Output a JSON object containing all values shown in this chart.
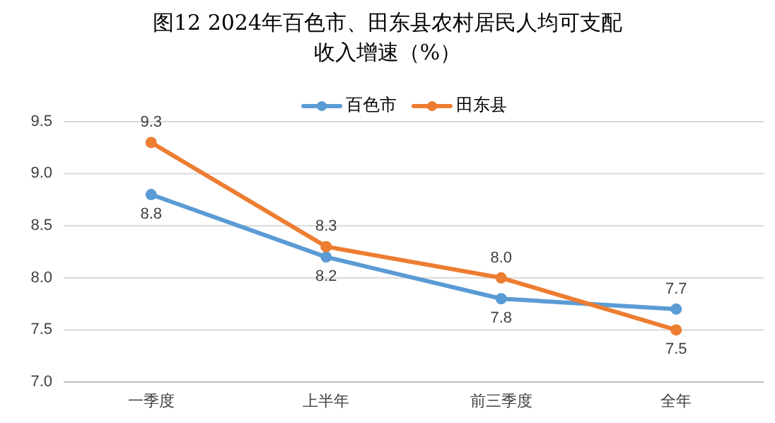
{
  "chart_data": {
    "type": "line",
    "title": "图12  2024年百色市、田东县农村居民人均可支配收入增速（%）",
    "categories": [
      "一季度",
      "上半年",
      "前三季度",
      "全年"
    ],
    "series": [
      {
        "name": "百色市",
        "color": "#5b9bd5",
        "values": [
          8.8,
          8.2,
          7.8,
          7.7
        ],
        "value_labels": [
          "8.8",
          "8.2",
          "7.8",
          "7.7"
        ]
      },
      {
        "name": "田东县",
        "color": "#ed7d31",
        "values": [
          9.3,
          8.3,
          8.0,
          7.5
        ],
        "value_labels": [
          "9.3",
          "8.3",
          "8.0",
          "7.5"
        ]
      }
    ],
    "ylim": [
      7.0,
      9.5
    ],
    "yticks": [
      {
        "value": 7,
        "label": "7.0"
      },
      7.5,
      {
        "value": 8,
        "label": "8.0"
      },
      8.5,
      {
        "value": 9,
        "label": "9.0"
      },
      9.5
    ],
    "grid": "y",
    "legend": "top",
    "marker": "circle",
    "line_style": "solid"
  }
}
